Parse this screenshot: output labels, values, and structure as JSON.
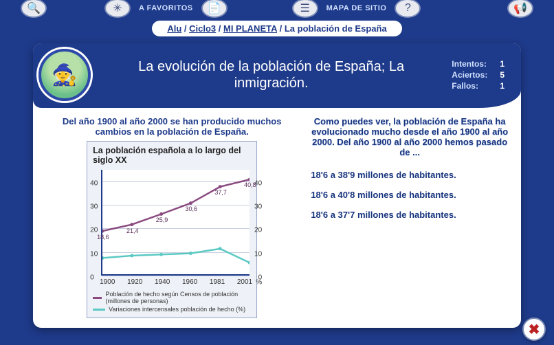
{
  "topbar": {
    "favoritos_label": "A FAVORITOS",
    "mapa_label": "MAPA DE SITIO"
  },
  "breadcrumb": {
    "items": [
      {
        "label": "Alu",
        "link": true
      },
      {
        "label": "Ciclo3",
        "link": true
      },
      {
        "label": "MI PLANETA",
        "link": true
      },
      {
        "label": "La población de España",
        "link": false
      }
    ],
    "separator": " / "
  },
  "header": {
    "title": "La evolución de la población de España; La inmigración.",
    "stats": {
      "intentos_label": "Intentos:",
      "intentos": "1",
      "aciertos_label": "Aciertos:",
      "aciertos": "5",
      "fallos_label": "Fallos:",
      "fallos": "1"
    }
  },
  "intro_text": "Del año 1900 al año 2000 se han producido muchos cambios en la población de España.",
  "chart": {
    "type": "line",
    "title": "La población española a lo largo del siglo XX",
    "x_categories": [
      "1900",
      "1920",
      "1940",
      "1960",
      "1981",
      "2001"
    ],
    "y_ticks": [
      0,
      10,
      20,
      30,
      40
    ],
    "y_right_ticks": [
      0,
      10,
      20,
      30,
      40
    ],
    "ylim": [
      0,
      45
    ],
    "series": [
      {
        "name": "Población de hecho según Censos de población (millones de personas)",
        "color": "#8a4a80",
        "values": [
          18.6,
          21.4,
          25.9,
          30.6,
          37.7,
          40.8
        ],
        "point_labels": [
          "18,6",
          "21,4",
          "25,9",
          "30,6",
          "37,7",
          "40,8"
        ]
      },
      {
        "name": "Variaciones intercensales población de hecho (%)",
        "color": "#5bc9c3",
        "values": [
          7,
          8,
          8.5,
          9,
          11,
          5
        ]
      }
    ],
    "pct_symbol": "%",
    "background_color": "#ffffff",
    "grid_color": "#c8cfe0",
    "axis_color": "#1e3a8a"
  },
  "question": "Como puedes ver, la población de España ha evolucionado mucho desde el año 1900 al año 2000. Del año 1900 al año 2000 hemos pasado de ...",
  "answers": [
    "18'6 a 38'9 millones de habitantes.",
    "18'6 a 40'8 millones de habitantes.",
    "18'6 a 37'7 millones de habitantes."
  ],
  "colors": {
    "page_bg": "#1e3a8a",
    "card_bg": "#ffffff",
    "accent": "#17347e"
  }
}
